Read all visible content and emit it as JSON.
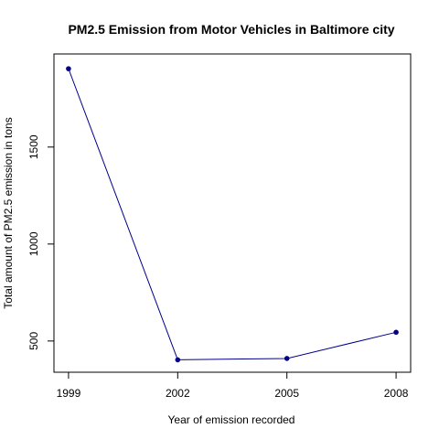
{
  "chart_data": {
    "type": "line",
    "title": "PM2.5 Emission from Motor Vehicles in Baltimore city",
    "xlabel": "Year of emission recorded",
    "ylabel": "Total amount of PM2.5 emission in tons",
    "x": [
      1999,
      2002,
      2005,
      2008
    ],
    "series": [
      {
        "values": [
          1904,
          403,
          410,
          545
        ]
      }
    ],
    "xticks": [
      "1999",
      "2002",
      "2005",
      "2008"
    ],
    "yticks": [
      "500",
      "1000",
      "1500"
    ],
    "xlim": [
      1998.6,
      2008.4
    ],
    "ylim": [
      339,
      1980
    ],
    "grid": false,
    "legend": "none",
    "colors": {
      "line": "#00008B",
      "points": "#00008B",
      "axis": "#000000"
    }
  }
}
